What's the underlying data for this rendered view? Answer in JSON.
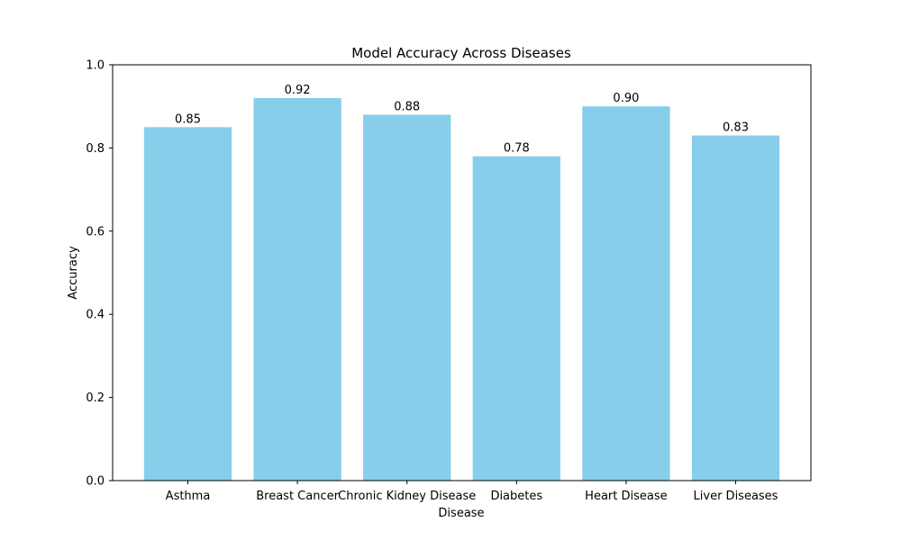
{
  "chart_data": {
    "type": "bar",
    "title": "Model Accuracy Across Diseases",
    "xlabel": "Disease",
    "ylabel": "Accuracy",
    "categories": [
      "Asthma",
      "Breast Cancer",
      "Chronic Kidney Disease",
      "Diabetes",
      "Heart Disease",
      "Liver Diseases"
    ],
    "values": [
      0.85,
      0.92,
      0.88,
      0.78,
      0.9,
      0.83
    ],
    "data_labels": [
      "0.85",
      "0.92",
      "0.88",
      "0.78",
      "0.90",
      "0.83"
    ],
    "ylim": [
      0,
      1.0
    ],
    "yticks": [
      0.0,
      0.2,
      0.4,
      0.6,
      0.8,
      1.0
    ],
    "ytick_labels": [
      "0.0",
      "0.2",
      "0.4",
      "0.6",
      "0.8",
      "1.0"
    ],
    "bar_color": "#87ceeb",
    "grid": false,
    "legend": "none"
  }
}
